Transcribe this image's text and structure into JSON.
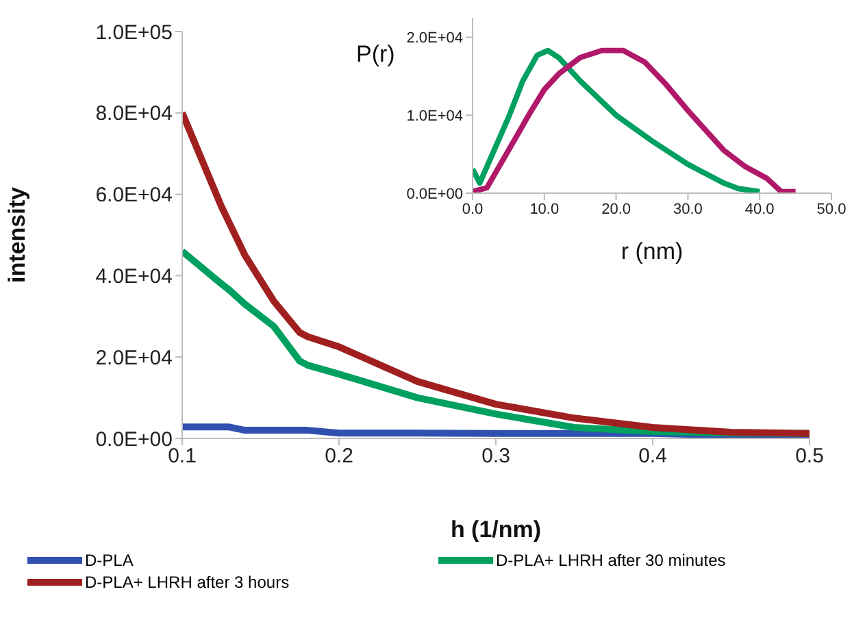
{
  "chart_data": [
    {
      "type": "line",
      "xlabel": "h (1/nm)",
      "ylabel": "intensity",
      "x": [
        0.1,
        0.125,
        0.13,
        0.14,
        0.1585,
        0.175,
        0.18,
        0.2,
        0.25,
        0.3,
        0.35,
        0.4,
        0.45,
        0.5
      ],
      "series": [
        {
          "name": "D-PLA",
          "color": "#3050b0",
          "values": [
            2800,
            2800,
            2800,
            2000,
            2000,
            2000,
            2000,
            1300,
            1300,
            1200,
            1200,
            1200,
            800,
            800
          ]
        },
        {
          "name": "D-PLA+ LHRH after 30 minutes",
          "color": "#00a060",
          "values": [
            46000,
            38000,
            36500,
            33000,
            27500,
            19000,
            18000,
            15800,
            10000,
            6000,
            2700,
            1700,
            1300,
            1200
          ]
        },
        {
          "name": "D-PLA+ LHRH after 3 hours",
          "color": "#a02020",
          "values": [
            80000,
            57000,
            53000,
            45000,
            33700,
            26000,
            25000,
            22500,
            14000,
            8400,
            5000,
            2700,
            1500,
            1200
          ]
        }
      ],
      "xlim": [
        0.1,
        0.5
      ],
      "xticks": [
        0.1,
        0.2,
        0.3,
        0.4,
        0.5
      ],
      "ylim": [
        0,
        100000
      ],
      "yticks": [
        {
          "value": 0,
          "label": "0.0E+00"
        },
        {
          "value": 20000,
          "label": "2.0E+04"
        },
        {
          "value": 40000,
          "label": "4.0E+04"
        },
        {
          "value": 60000,
          "label": "6.0E+04"
        },
        {
          "value": 80000,
          "label": "8.0E+04"
        },
        {
          "value": 100000,
          "label": "1.0E+05"
        }
      ],
      "legend": "bottom",
      "grid": false,
      "marker": "none",
      "line_style": "solid"
    },
    {
      "type": "line",
      "xlabel": "r (nm)",
      "ylabel": "P(r)",
      "series": [
        {
          "color": "#00a060",
          "x": [
            0,
            1,
            3,
            5,
            7,
            9,
            10.5,
            12,
            15,
            20,
            25,
            30,
            35,
            37,
            40
          ],
          "values": [
            3100,
            1300,
            5500,
            9700,
            14400,
            17700,
            18300,
            17400,
            14400,
            10000,
            6700,
            3700,
            1300,
            600,
            200
          ]
        },
        {
          "color": "#b0186a",
          "x": [
            0,
            2,
            5,
            8,
            10,
            12,
            15,
            18,
            21,
            24,
            27,
            30,
            35,
            38,
            41,
            43,
            45
          ],
          "values": [
            200,
            700,
            5500,
            10300,
            13300,
            15300,
            17400,
            18300,
            18300,
            16800,
            13900,
            10600,
            5500,
            3400,
            1900,
            200,
            200
          ]
        }
      ],
      "xlim": [
        0,
        50
      ],
      "xticks": [
        {
          "value": 0,
          "label": "0.0"
        },
        {
          "value": 10,
          "label": "10.0"
        },
        {
          "value": 20,
          "label": "20.0"
        },
        {
          "value": 30,
          "label": "30.0"
        },
        {
          "value": 40,
          "label": "40.0"
        },
        {
          "value": 50,
          "label": "50.0"
        }
      ],
      "ylim": [
        0,
        22500
      ],
      "yticks": [
        {
          "value": 0,
          "label": "0.0E+00"
        },
        {
          "value": 10000,
          "label": "1.0E+04"
        },
        {
          "value": 20000,
          "label": "2.0E+04"
        }
      ],
      "legend": false,
      "grid": false,
      "marker": "none",
      "line_style": "solid"
    }
  ]
}
